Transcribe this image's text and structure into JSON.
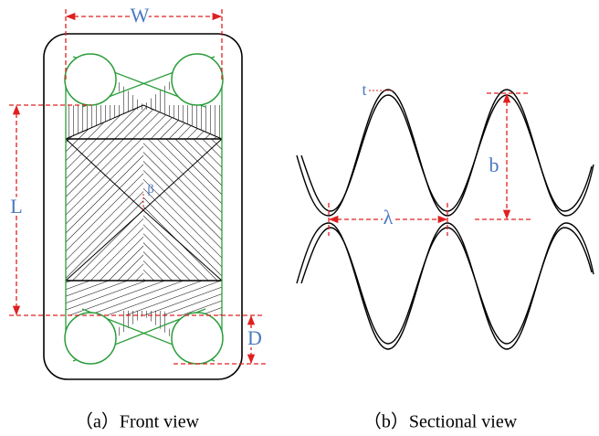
{
  "front_view": {
    "labels": {
      "width": "W",
      "length": "L",
      "port_diameter": "D",
      "angle": "β"
    },
    "caption": "（a）Front view"
  },
  "sectional_view": {
    "labels": {
      "thickness": "t",
      "height": "b",
      "wavelength": "λ"
    },
    "caption": "（b）Sectional view"
  }
}
